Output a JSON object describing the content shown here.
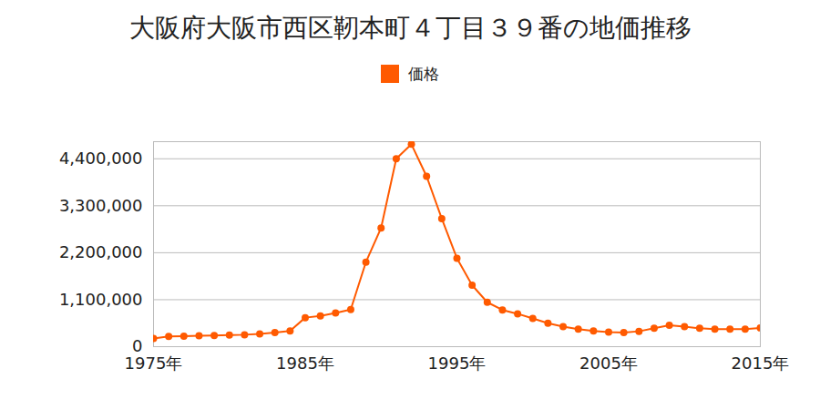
{
  "chart_data": {
    "type": "line",
    "title": "大阪府大阪市西区靭本町４丁目３９番の地価推移",
    "x": [
      1975,
      1976,
      1977,
      1978,
      1979,
      1980,
      1981,
      1982,
      1983,
      1984,
      1985,
      1986,
      1987,
      1988,
      1989,
      1990,
      1991,
      1992,
      1993,
      1994,
      1995,
      1996,
      1997,
      1998,
      1999,
      2000,
      2001,
      2002,
      2003,
      2004,
      2005,
      2006,
      2007,
      2008,
      2009,
      2010,
      2011,
      2012,
      2013,
      2014,
      2015
    ],
    "series": [
      {
        "name": "価格",
        "color": "#ff5a00",
        "marker": "circle",
        "values": [
          190000,
          240000,
          245000,
          255000,
          260000,
          270000,
          280000,
          300000,
          330000,
          370000,
          680000,
          720000,
          790000,
          870000,
          1980000,
          2780000,
          4400000,
          4740000,
          3990000,
          3000000,
          2070000,
          1440000,
          1040000,
          860000,
          770000,
          660000,
          550000,
          470000,
          410000,
          370000,
          340000,
          330000,
          360000,
          430000,
          500000,
          470000,
          430000,
          410000,
          410000,
          410000,
          440000
        ]
      }
    ],
    "xlim": [
      1975,
      2015
    ],
    "xticks": [
      {
        "value": 1975,
        "label": "1975年"
      },
      {
        "value": 1985,
        "label": "1985年"
      },
      {
        "value": 1995,
        "label": "1995年"
      },
      {
        "value": 2005,
        "label": "2005年"
      },
      {
        "value": 2015,
        "label": "2015年"
      }
    ],
    "ylim": [
      0,
      4800000
    ],
    "yticks": [
      0,
      {
        "value": 1100000,
        "label": "1,100,000"
      },
      {
        "value": 2200000,
        "label": "2,200,000"
      },
      {
        "value": 3300000,
        "label": "3,300,000"
      },
      {
        "value": 4400000,
        "label": "4,400,000"
      }
    ],
    "grid": true,
    "legend": "top"
  }
}
